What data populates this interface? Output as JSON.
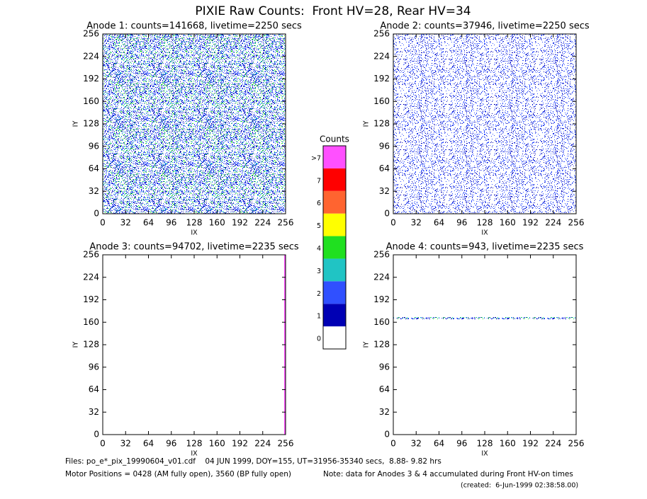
{
  "title": "PIXIE Raw Counts:  Front HV=28, Rear HV=34",
  "chart_data": [
    {
      "type": "heatmap",
      "title": "Anode 1: counts=141668, livetime=2250 secs",
      "xlabel": "IX",
      "ylabel": "IY",
      "xlim": [
        0,
        256
      ],
      "ylim": [
        0,
        256
      ],
      "xticks": [
        0,
        32,
        64,
        96,
        128,
        160,
        192,
        224,
        256
      ],
      "yticks": [
        0,
        32,
        64,
        96,
        128,
        160,
        192,
        224,
        256
      ]
    },
    {
      "type": "heatmap",
      "title": "Anode 2: counts=37946, livetime=2250 secs",
      "xlabel": "IX",
      "ylabel": "IY",
      "xlim": [
        0,
        256
      ],
      "ylim": [
        0,
        256
      ],
      "xticks": [
        0,
        32,
        64,
        96,
        128,
        160,
        192,
        224,
        256
      ],
      "yticks": [
        0,
        32,
        64,
        96,
        128,
        160,
        192,
        224,
        256
      ]
    },
    {
      "type": "heatmap",
      "title": "Anode 3: counts=94702, livetime=2235 secs",
      "xlabel": "IX",
      "ylabel": "IY",
      "xlim": [
        0,
        256
      ],
      "ylim": [
        0,
        256
      ],
      "xticks": [
        0,
        32,
        64,
        96,
        128,
        160,
        192,
        224,
        256
      ],
      "yticks": [
        0,
        32,
        64,
        96,
        128,
        160,
        192,
        224,
        256
      ]
    },
    {
      "type": "heatmap",
      "title": "Anode 4: counts=943, livetime=2235 secs",
      "xlabel": "IX",
      "ylabel": "IY",
      "xlim": [
        0,
        256
      ],
      "ylim": [
        0,
        256
      ],
      "xticks": [
        0,
        32,
        64,
        96,
        128,
        160,
        192,
        224,
        256
      ],
      "yticks": [
        0,
        32,
        64,
        96,
        128,
        160,
        192,
        224,
        256
      ]
    }
  ],
  "colorbar": {
    "title": "Counts",
    "ticks": [
      0,
      1,
      2,
      3,
      4,
      5,
      6,
      7,
      {
        "value": 8,
        "label": ">7"
      }
    ],
    "colors": [
      "#ffffff",
      "#0000b4",
      "#3050ff",
      "#20c4c4",
      "#20e020",
      "#ffff00",
      "#ff6430",
      "#ff0000",
      "#ff50ff"
    ]
  },
  "footer": {
    "files": "Files: po_e*_pix_19990604_v01.cdf    04 JUN 1999, DOY=155, UT=31956-35340 secs,  8.88- 9.82 hrs",
    "motor": "Motor Positions = 0428 (AM fully open), 3560 (BP fully open)",
    "note": "Note: data for Anodes 3 & 4 accumulated during Front HV-on times",
    "created": "(created:  6-Jun-1999 02:38:58.00)"
  }
}
